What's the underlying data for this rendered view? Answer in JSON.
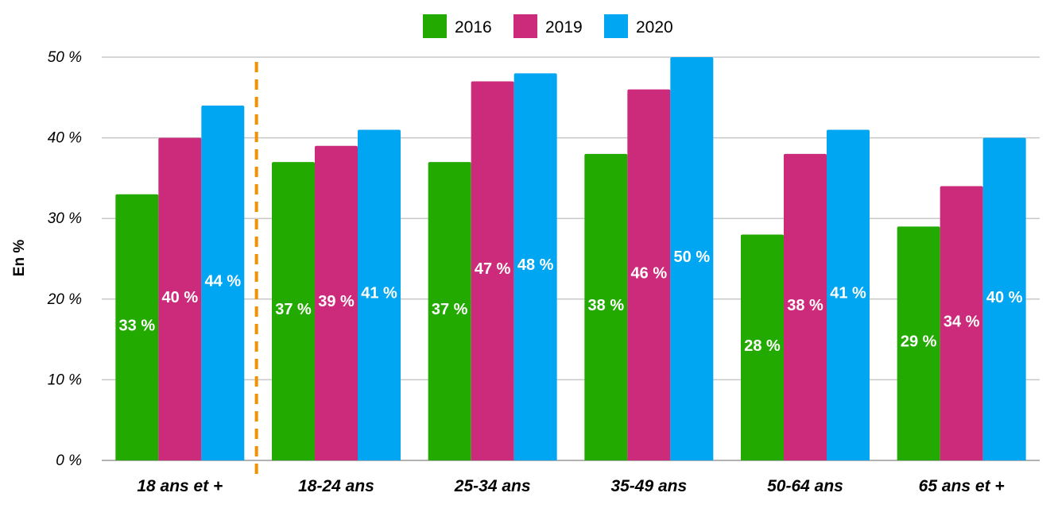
{
  "chart_data": {
    "type": "bar",
    "ylabel": "En %",
    "ylim": [
      0,
      50
    ],
    "y_ticks": [
      {
        "value": 0,
        "label": "0 %"
      },
      {
        "value": 10,
        "label": "10 %"
      },
      {
        "value": 20,
        "label": "20 %"
      },
      {
        "value": 30,
        "label": "30 %"
      },
      {
        "value": 40,
        "label": "40 %"
      },
      {
        "value": 50,
        "label": "50 %"
      }
    ],
    "categories": [
      "18 ans et +",
      "18-24 ans",
      "25-34 ans",
      "35-49 ans",
      "50-64 ans",
      "65 ans et +"
    ],
    "series": [
      {
        "name": "2016",
        "color": "#22AA00",
        "values": [
          33,
          37,
          37,
          38,
          28,
          29
        ],
        "labels": [
          "33 %",
          "37 %",
          "37 %",
          "38 %",
          "28 %",
          "29 %"
        ]
      },
      {
        "name": "2019",
        "color": "#CC2A7A",
        "values": [
          40,
          39,
          47,
          46,
          38,
          34
        ],
        "labels": [
          "40 %",
          "39 %",
          "47 %",
          "46 %",
          "38 %",
          "34 %"
        ]
      },
      {
        "name": "2020",
        "color": "#00A6F2",
        "values": [
          44,
          41,
          48,
          50,
          41,
          40
        ],
        "labels": [
          "44 %",
          "41 %",
          "48 %",
          "50 %",
          "41 %",
          "40 %"
        ]
      }
    ],
    "legend_position": "top-center",
    "grid": true,
    "separator_after_category": 0,
    "separator_color": "#F39200"
  }
}
